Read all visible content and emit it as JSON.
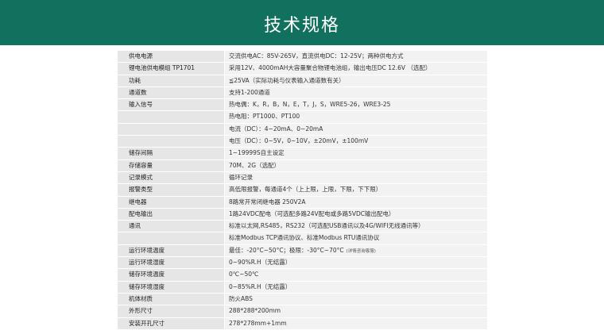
{
  "header": {
    "title": "技术规格"
  },
  "table": {
    "rows": [
      {
        "label": "供电电源",
        "value": "交流供电AC：85V-265V，直流供电DC：12-25V；两种供电方式"
      },
      {
        "label": "锂电池供电模组 TP1701",
        "value": "采用12V、4000mAH大容量聚合物锂电池组，输出电压DC 12.6V （选配）"
      },
      {
        "label": "功耗",
        "value": "≦25VA（实际功耗与仪表输入通道数有关）"
      },
      {
        "label": "通道数",
        "value": "支持1-200通道"
      },
      {
        "label": "输入信号",
        "value": "热电偶：K，R，B，N，E，T，J，S，WRE5-26，WRE3-25"
      },
      {
        "value": "热电阻：PT1000、PT100"
      },
      {
        "value": "电流（DC）：4~20mA、0~20mA"
      },
      {
        "value": "电压（DC）：0~5V，0~10V，±20mV，±100mV"
      },
      {
        "label": "储存间隔",
        "value": "1~19999S自主设定"
      },
      {
        "label": "存储容量",
        "value": "70M、2G（选配）"
      },
      {
        "label": "记录模式",
        "value": "循环记录"
      },
      {
        "label": "报警类型",
        "value": "高低限报警，每通道4个（上上限，上限，下限，下下限）"
      },
      {
        "label": "继电器",
        "value": "8路常开常闭继电器 250V2A"
      },
      {
        "label": "配电输出",
        "value": "1路24VDC配电（可选配多路24V配电或多路5VDC输出配电）"
      },
      {
        "label": "通讯",
        "value": "标准以太网,RS485，RS232（可选配USB通讯以及4G/WIFI无线通讯等）"
      },
      {
        "value": "标准Modbus TCP通讯协议、标准Modbus RTU通讯协议"
      },
      {
        "label": "运行环境温度",
        "value": "最佳：-20°C~50°C；极限：-30°C~70°C",
        "note": "(详情咨询客服)"
      },
      {
        "label": "运行环境湿度",
        "value": "0~90%R.H（无结露）"
      },
      {
        "label": "储存环境温度",
        "value": "0℃~50℃"
      },
      {
        "label": "储存环境湿度",
        "value": "0~85%R.H（无结露）"
      },
      {
        "label": "机体材质",
        "value": "防火ABS"
      },
      {
        "label": "外形尺寸",
        "value": "288*288*200mm"
      },
      {
        "label": "安装开孔尺寸",
        "value": "278*278mm+1mm"
      }
    ]
  }
}
